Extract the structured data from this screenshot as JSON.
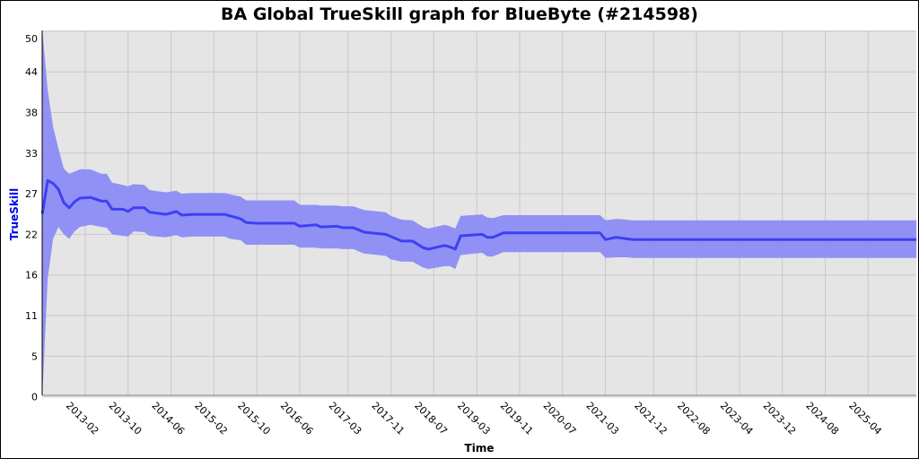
{
  "chart_data": {
    "type": "line",
    "title": "BA Global TrueSkill graph for BlueByte (#214598)",
    "xlabel": "Time",
    "ylabel": "TrueSkill",
    "ylim": [
      0,
      50
    ],
    "xlim": [
      "2012-06",
      "2026-01"
    ],
    "grid": true,
    "y_ticks": [
      {
        "value": 0,
        "label": "0"
      },
      {
        "value": 5.5,
        "label": "5"
      },
      {
        "value": 11,
        "label": "11"
      },
      {
        "value": 16.5,
        "label": "16"
      },
      {
        "value": 22,
        "label": "22"
      },
      {
        "value": 27.5,
        "label": "27"
      },
      {
        "value": 33,
        "label": "33"
      },
      {
        "value": 38.5,
        "label": "38"
      },
      {
        "value": 44,
        "label": "44"
      },
      {
        "value": 49.5,
        "label": "50"
      }
    ],
    "x_ticks": [
      "2013-02",
      "2013-10",
      "2014-06",
      "2015-02",
      "2015-10",
      "2016-06",
      "2017-03",
      "2017-11",
      "2018-07",
      "2019-03",
      "2019-11",
      "2020-07",
      "2021-03",
      "2021-12",
      "2022-08",
      "2023-04",
      "2023-12",
      "2024-08",
      "2025-04"
    ],
    "colors": {
      "line": "#3f3ff5",
      "band": "#8c8cf5",
      "plot_bg": "#e5e5e5",
      "grid": "#c8c8c8",
      "ylabel": "#0000ee"
    },
    "series": [
      {
        "x": [
          "2012-06",
          "2012-07",
          "2012-08",
          "2012-09",
          "2012-10",
          "2012-11",
          "2012-12",
          "2013-01",
          "2013-03",
          "2013-05",
          "2013-06",
          "2013-07",
          "2013-09",
          "2013-10",
          "2013-11",
          "2014-01",
          "2014-02",
          "2014-05",
          "2014-07",
          "2014-08",
          "2014-10",
          "2015-04",
          "2015-05",
          "2015-07",
          "2015-08",
          "2015-10",
          "2016-05",
          "2016-06",
          "2016-09",
          "2016-10",
          "2017-01",
          "2017-02",
          "2017-04",
          "2017-06",
          "2017-10",
          "2017-11",
          "2018-01",
          "2018-03",
          "2018-05",
          "2018-06",
          "2018-09",
          "2018-10",
          "2018-11",
          "2018-12",
          "2019-04",
          "2019-05",
          "2019-06",
          "2019-08",
          "2021-02",
          "2021-03",
          "2021-05",
          "2021-07",
          "2021-08",
          "2026-01"
        ],
        "mean": [
          24.8,
          29.3,
          28.9,
          28.1,
          26.3,
          25.6,
          26.4,
          26.9,
          27.0,
          26.5,
          26.5,
          25.4,
          25.4,
          25.1,
          25.6,
          25.6,
          25.0,
          24.7,
          25.1,
          24.6,
          24.7,
          24.7,
          24.5,
          24.1,
          23.6,
          23.5,
          23.5,
          23.1,
          23.3,
          23.0,
          23.1,
          22.9,
          22.9,
          22.3,
          22.0,
          21.7,
          21.1,
          21.1,
          20.2,
          20.0,
          20.5,
          20.3,
          20.0,
          21.8,
          22.0,
          21.6,
          21.6,
          22.2,
          22.2,
          21.3,
          21.6,
          21.4,
          21.3,
          21.3
        ],
        "upper": [
          50.0,
          41.5,
          36.6,
          33.6,
          30.9,
          30.2,
          30.5,
          30.8,
          30.8,
          30.2,
          30.2,
          29.0,
          28.7,
          28.5,
          28.8,
          28.7,
          28.0,
          27.7,
          27.9,
          27.5,
          27.6,
          27.6,
          27.4,
          27.1,
          26.6,
          26.6,
          26.6,
          26.0,
          26.0,
          25.9,
          25.9,
          25.8,
          25.8,
          25.3,
          25.0,
          24.5,
          24.0,
          23.9,
          23.0,
          22.8,
          23.3,
          23.1,
          22.8,
          24.5,
          24.7,
          24.3,
          24.2,
          24.6,
          24.6,
          23.9,
          24.1,
          24.0,
          23.9,
          23.9
        ],
        "lower": [
          0.2,
          16.0,
          21.4,
          23.0,
          22.0,
          21.4,
          22.4,
          23.0,
          23.3,
          23.0,
          22.9,
          22.0,
          21.8,
          21.7,
          22.4,
          22.3,
          21.8,
          21.6,
          21.9,
          21.6,
          21.7,
          21.7,
          21.4,
          21.2,
          20.6,
          20.6,
          20.6,
          20.2,
          20.2,
          20.1,
          20.1,
          20.0,
          20.0,
          19.4,
          19.1,
          18.6,
          18.3,
          18.3,
          17.5,
          17.3,
          17.7,
          17.7,
          17.3,
          19.2,
          19.5,
          19.0,
          19.0,
          19.6,
          19.6,
          18.8,
          18.9,
          18.9,
          18.8,
          18.8
        ]
      }
    ]
  }
}
